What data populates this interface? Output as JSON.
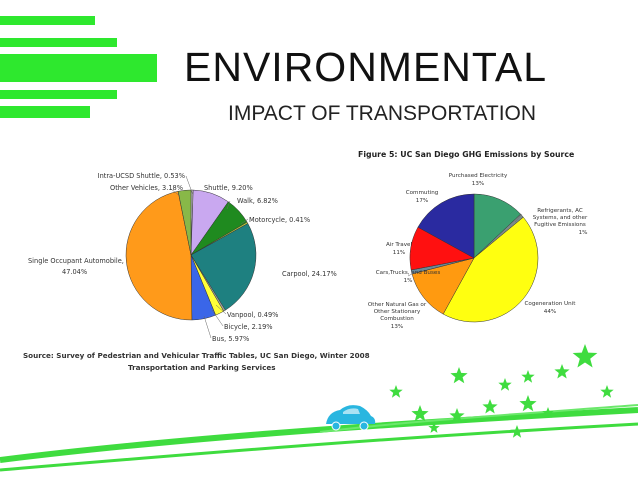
{
  "slide": {
    "title": "ENVIRONMENTAL",
    "subtitle": "IMPACT OF TRANSPORTATION",
    "accent_color": "#2ee82e",
    "car_color": "#29b6e0",
    "star_color": "#3fdc3f"
  },
  "chart_data": [
    {
      "type": "pie",
      "title": "",
      "categories": [
        "Intra-UCSD Shuttle, 0.53%",
        "Shuttle, 9.20%",
        "Walk, 6.82%",
        "Motorcycle, 0.41%",
        "Carpool, 24.17%",
        "Vanpool, 0.49%",
        "Bicycle, 2.19%",
        "Bus, 5.97%",
        "Single Occupant Automobile, 47.04%",
        "Other Vehicles, 3.18%"
      ],
      "values": [
        0.53,
        9.2,
        6.82,
        0.41,
        24.17,
        0.49,
        2.19,
        5.97,
        47.04,
        3.18
      ],
      "colors": [
        "#c8c8c8",
        "#c9a8f0",
        "#1f8a1f",
        "#b8c838",
        "#1e8080",
        "#9aa0a0",
        "#ffff38",
        "#3a66e8",
        "#ff9a1a",
        "#88b848"
      ],
      "legend": "callouts",
      "source": "Source: Survey of Pedestrian and Vehicular Traffic Tables, UC San Diego, Winter 2008",
      "source2": "Transportation and Parking Services"
    },
    {
      "type": "pie",
      "title": "Figure 5: UC San Diego GHG Emissions by Source",
      "categories": [
        "Purchased Electricity 13%",
        "Refrigerants, AC Systems, and other Fugitive Emissions 1%",
        "Cogeneration Unit 44%",
        "Other Natural Gas or Other Stationary Combustion 13%",
        "Cars,Trucks, and Buses 1%",
        "Air Travel 11%",
        "Commuting 17%"
      ],
      "values": [
        13,
        1,
        44,
        13,
        1,
        11,
        17
      ],
      "colors": [
        "#3aa070",
        "#7a8a8a",
        "#ffff10",
        "#ff9a10",
        "#6a8a9a",
        "#ff1010",
        "#2a2aa0"
      ],
      "legend": "callouts"
    }
  ]
}
